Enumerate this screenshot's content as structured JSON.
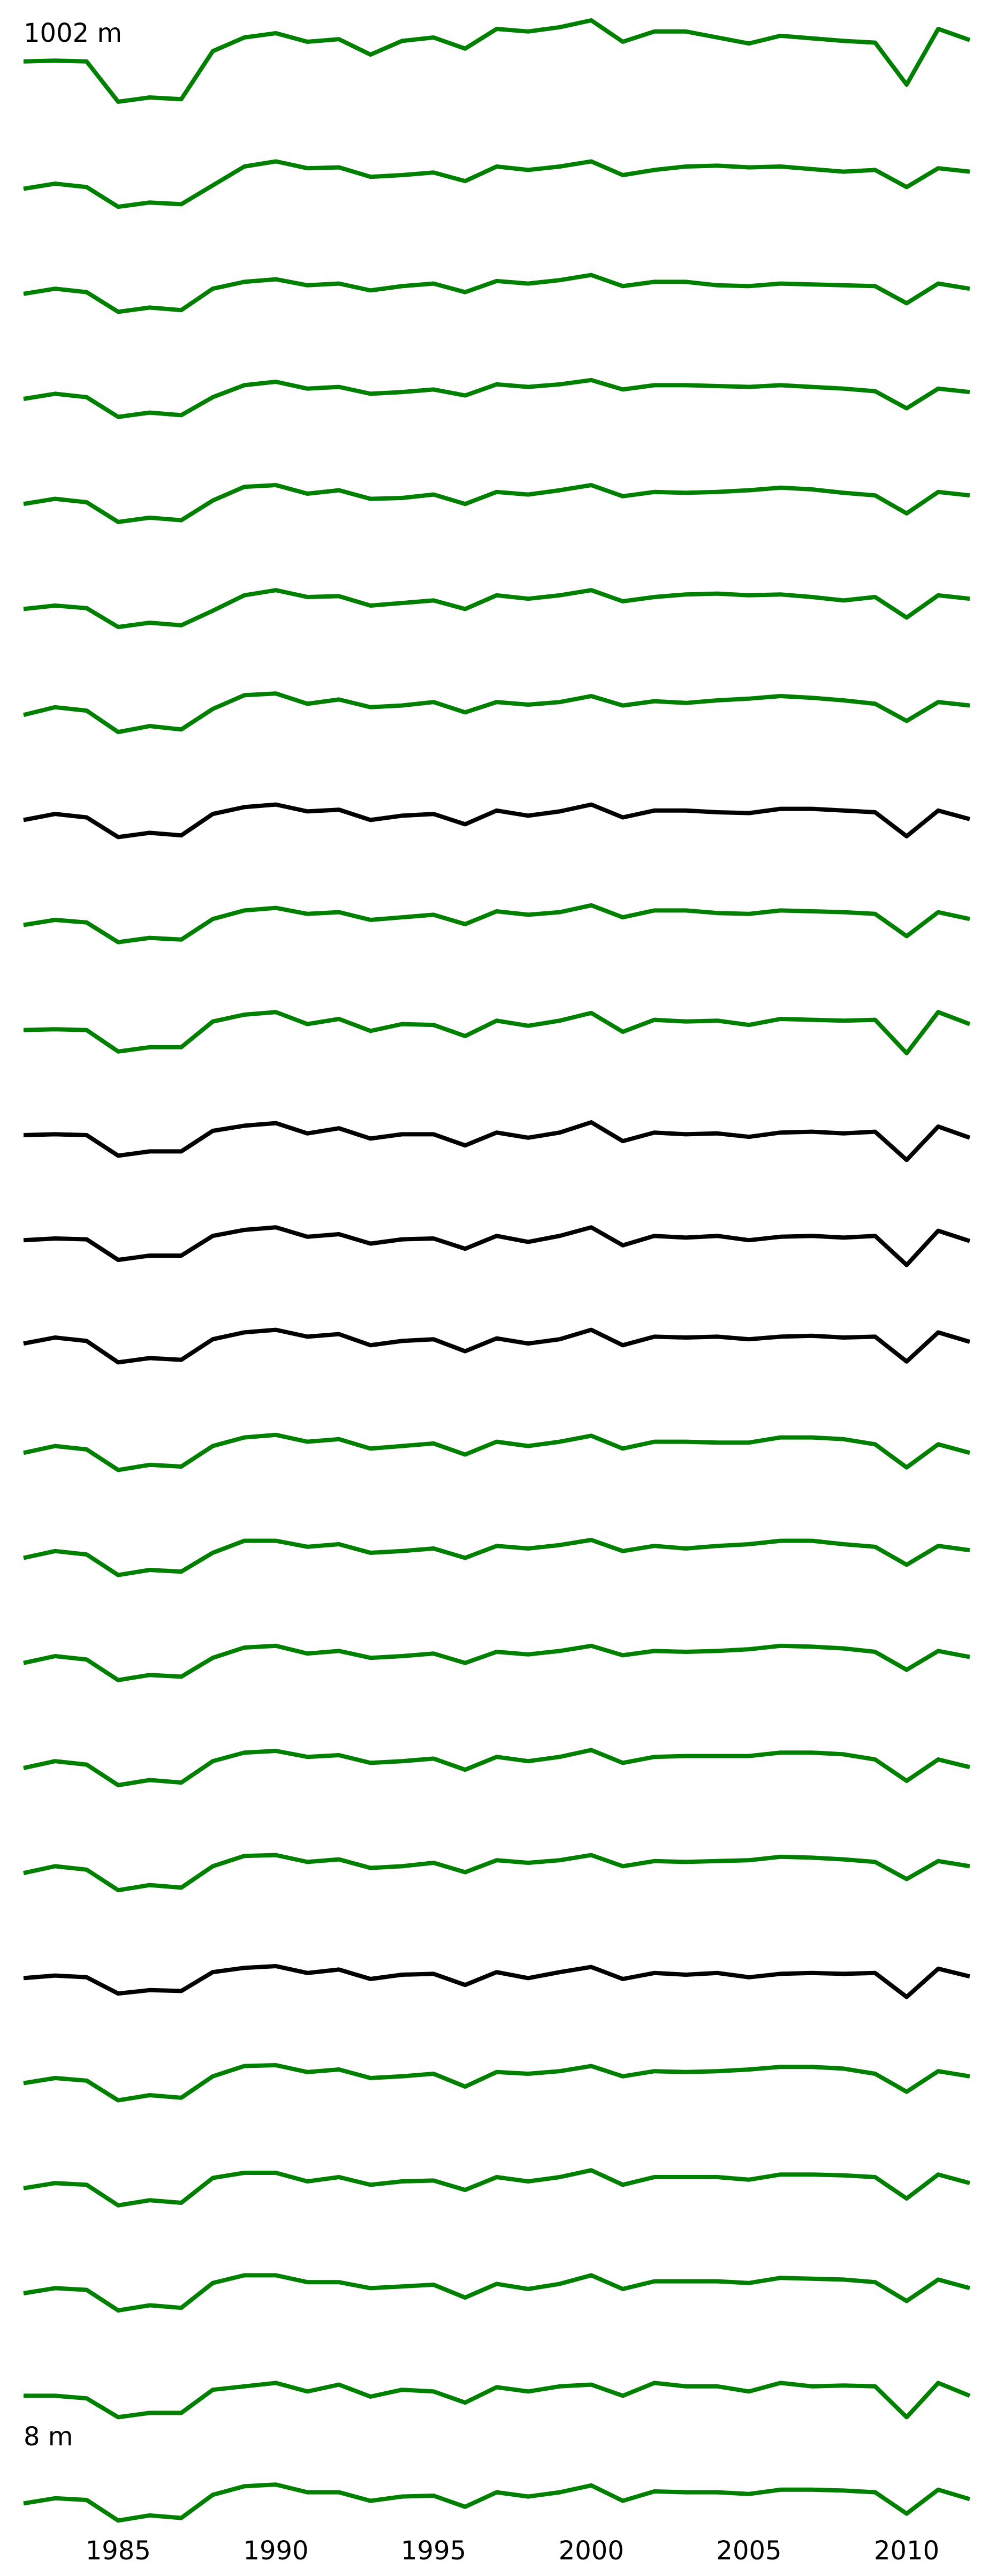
{
  "chart_data": {
    "type": "line",
    "top_label": "1002 m",
    "bottom_label": "8 m",
    "x": [
      1982,
      1983,
      1984,
      1985,
      1986,
      1987,
      1988,
      1989,
      1990,
      1991,
      1992,
      1993,
      1994,
      1995,
      1996,
      1997,
      1998,
      1999,
      2000,
      2001,
      2002,
      2003,
      2004,
      2005,
      2006,
      2007,
      2008,
      2009,
      2010,
      2011,
      2012
    ],
    "x_ticks": [
      1985,
      1990,
      1995,
      2000,
      2005,
      2010
    ],
    "xlim": [
      1982,
      2012
    ],
    "y_axis_visible": false,
    "grid": false,
    "colors": {
      "green": "#008000",
      "black": "#000000"
    },
    "series": [
      {
        "color": "green",
        "values": [
          0.72,
          0.73,
          0.72,
          0.25,
          0.3,
          0.28,
          0.84,
          1.0,
          1.05,
          0.95,
          0.98,
          0.8,
          0.96,
          1.0,
          0.87,
          1.1,
          1.07,
          1.12,
          1.2,
          0.95,
          1.07,
          1.07,
          1.0,
          0.93,
          1.02,
          0.99,
          0.96,
          0.94,
          0.45,
          1.1,
          0.97
        ]
      },
      {
        "color": "green",
        "values": [
          0.46,
          0.52,
          0.48,
          0.25,
          0.3,
          0.28,
          0.5,
          0.72,
          0.78,
          0.7,
          0.71,
          0.6,
          0.62,
          0.65,
          0.55,
          0.72,
          0.68,
          0.72,
          0.78,
          0.62,
          0.68,
          0.72,
          0.73,
          0.71,
          0.72,
          0.69,
          0.66,
          0.68,
          0.48,
          0.7,
          0.66
        ]
      },
      {
        "color": "green",
        "values": [
          0.46,
          0.52,
          0.48,
          0.25,
          0.3,
          0.27,
          0.52,
          0.6,
          0.63,
          0.56,
          0.58,
          0.5,
          0.55,
          0.58,
          0.48,
          0.61,
          0.58,
          0.62,
          0.68,
          0.55,
          0.6,
          0.6,
          0.56,
          0.55,
          0.58,
          0.57,
          0.56,
          0.55,
          0.35,
          0.58,
          0.52
        ]
      },
      {
        "color": "green",
        "values": [
          0.46,
          0.52,
          0.48,
          0.25,
          0.3,
          0.27,
          0.48,
          0.62,
          0.66,
          0.58,
          0.6,
          0.52,
          0.54,
          0.57,
          0.5,
          0.63,
          0.6,
          0.63,
          0.68,
          0.57,
          0.62,
          0.62,
          0.61,
          0.6,
          0.62,
          0.6,
          0.58,
          0.55,
          0.35,
          0.58,
          0.54
        ]
      },
      {
        "color": "green",
        "values": [
          0.46,
          0.52,
          0.48,
          0.25,
          0.3,
          0.27,
          0.5,
          0.66,
          0.68,
          0.58,
          0.62,
          0.52,
          0.53,
          0.57,
          0.46,
          0.6,
          0.57,
          0.62,
          0.68,
          0.55,
          0.6,
          0.59,
          0.6,
          0.62,
          0.65,
          0.63,
          0.59,
          0.56,
          0.35,
          0.6,
          0.56
        ]
      },
      {
        "color": "green",
        "values": [
          0.46,
          0.5,
          0.47,
          0.25,
          0.3,
          0.27,
          0.44,
          0.62,
          0.68,
          0.6,
          0.61,
          0.5,
          0.53,
          0.56,
          0.46,
          0.62,
          0.58,
          0.62,
          0.68,
          0.55,
          0.6,
          0.63,
          0.64,
          0.62,
          0.63,
          0.6,
          0.56,
          0.6,
          0.36,
          0.62,
          0.58
        ]
      },
      {
        "color": "green",
        "values": [
          0.45,
          0.54,
          0.5,
          0.25,
          0.32,
          0.28,
          0.52,
          0.68,
          0.7,
          0.58,
          0.63,
          0.54,
          0.56,
          0.6,
          0.48,
          0.6,
          0.57,
          0.6,
          0.67,
          0.56,
          0.61,
          0.59,
          0.62,
          0.64,
          0.67,
          0.65,
          0.62,
          0.58,
          0.38,
          0.6,
          0.56
        ]
      },
      {
        "color": "black",
        "values": [
          0.45,
          0.52,
          0.48,
          0.25,
          0.3,
          0.27,
          0.52,
          0.6,
          0.63,
          0.55,
          0.57,
          0.45,
          0.5,
          0.52,
          0.4,
          0.56,
          0.5,
          0.55,
          0.63,
          0.48,
          0.56,
          0.56,
          0.54,
          0.53,
          0.58,
          0.58,
          0.56,
          0.54,
          0.26,
          0.56,
          0.46
        ]
      },
      {
        "color": "green",
        "values": [
          0.45,
          0.51,
          0.48,
          0.25,
          0.3,
          0.28,
          0.52,
          0.62,
          0.65,
          0.58,
          0.6,
          0.51,
          0.54,
          0.57,
          0.46,
          0.61,
          0.57,
          0.6,
          0.68,
          0.54,
          0.62,
          0.62,
          0.59,
          0.58,
          0.62,
          0.61,
          0.6,
          0.58,
          0.32,
          0.6,
          0.52
        ]
      },
      {
        "color": "green",
        "values": [
          0.45,
          0.46,
          0.45,
          0.2,
          0.25,
          0.25,
          0.55,
          0.63,
          0.66,
          0.52,
          0.58,
          0.44,
          0.52,
          0.51,
          0.38,
          0.56,
          0.5,
          0.56,
          0.65,
          0.43,
          0.57,
          0.55,
          0.56,
          0.51,
          0.58,
          0.57,
          0.56,
          0.57,
          0.18,
          0.66,
          0.52
        ]
      },
      {
        "color": "black",
        "values": [
          0.45,
          0.46,
          0.45,
          0.21,
          0.26,
          0.26,
          0.5,
          0.56,
          0.59,
          0.47,
          0.53,
          0.41,
          0.46,
          0.46,
          0.33,
          0.48,
          0.42,
          0.48,
          0.6,
          0.38,
          0.48,
          0.46,
          0.47,
          0.43,
          0.48,
          0.49,
          0.47,
          0.49,
          0.16,
          0.55,
          0.42
        ]
      },
      {
        "color": "black",
        "values": [
          0.45,
          0.47,
          0.46,
          0.22,
          0.27,
          0.27,
          0.5,
          0.57,
          0.6,
          0.49,
          0.52,
          0.41,
          0.46,
          0.47,
          0.35,
          0.5,
          0.43,
          0.5,
          0.6,
          0.39,
          0.5,
          0.48,
          0.5,
          0.45,
          0.49,
          0.5,
          0.48,
          0.5,
          0.16,
          0.56,
          0.44
        ]
      },
      {
        "color": "black",
        "values": [
          0.47,
          0.54,
          0.5,
          0.25,
          0.3,
          0.28,
          0.52,
          0.6,
          0.63,
          0.55,
          0.58,
          0.45,
          0.5,
          0.52,
          0.38,
          0.53,
          0.47,
          0.52,
          0.63,
          0.45,
          0.55,
          0.54,
          0.55,
          0.52,
          0.55,
          0.56,
          0.54,
          0.55,
          0.26,
          0.6,
          0.49
        ]
      },
      {
        "color": "green",
        "values": [
          0.42,
          0.5,
          0.46,
          0.22,
          0.28,
          0.26,
          0.5,
          0.6,
          0.63,
          0.55,
          0.58,
          0.47,
          0.5,
          0.53,
          0.4,
          0.55,
          0.5,
          0.55,
          0.62,
          0.47,
          0.55,
          0.55,
          0.54,
          0.54,
          0.6,
          0.6,
          0.58,
          0.52,
          0.25,
          0.52,
          0.42
        ]
      },
      {
        "color": "green",
        "values": [
          0.42,
          0.5,
          0.46,
          0.22,
          0.28,
          0.26,
          0.48,
          0.62,
          0.62,
          0.55,
          0.58,
          0.48,
          0.5,
          0.53,
          0.42,
          0.56,
          0.53,
          0.57,
          0.63,
          0.5,
          0.56,
          0.53,
          0.56,
          0.58,
          0.62,
          0.62,
          0.58,
          0.55,
          0.34,
          0.56,
          0.51
        ]
      },
      {
        "color": "green",
        "values": [
          0.42,
          0.5,
          0.46,
          0.22,
          0.28,
          0.26,
          0.48,
          0.6,
          0.62,
          0.53,
          0.56,
          0.48,
          0.5,
          0.53,
          0.42,
          0.55,
          0.52,
          0.56,
          0.62,
          0.51,
          0.56,
          0.55,
          0.56,
          0.58,
          0.62,
          0.61,
          0.59,
          0.55,
          0.34,
          0.56,
          0.49
        ]
      },
      {
        "color": "green",
        "values": [
          0.42,
          0.5,
          0.46,
          0.22,
          0.28,
          0.25,
          0.5,
          0.6,
          0.62,
          0.55,
          0.57,
          0.48,
          0.5,
          0.53,
          0.4,
          0.55,
          0.5,
          0.55,
          0.63,
          0.48,
          0.55,
          0.56,
          0.56,
          0.56,
          0.6,
          0.6,
          0.58,
          0.52,
          0.27,
          0.52,
          0.43
        ]
      },
      {
        "color": "green",
        "values": [
          0.42,
          0.5,
          0.46,
          0.22,
          0.28,
          0.25,
          0.5,
          0.62,
          0.63,
          0.55,
          0.58,
          0.48,
          0.5,
          0.54,
          0.43,
          0.57,
          0.54,
          0.57,
          0.63,
          0.5,
          0.56,
          0.55,
          0.56,
          0.57,
          0.61,
          0.6,
          0.58,
          0.55,
          0.35,
          0.56,
          0.5
        ]
      },
      {
        "color": "black",
        "values": [
          0.42,
          0.45,
          0.43,
          0.24,
          0.28,
          0.27,
          0.49,
          0.54,
          0.56,
          0.48,
          0.52,
          0.41,
          0.46,
          0.47,
          0.34,
          0.49,
          0.42,
          0.49,
          0.55,
          0.41,
          0.48,
          0.46,
          0.48,
          0.43,
          0.47,
          0.48,
          0.47,
          0.48,
          0.2,
          0.53,
          0.44
        ]
      },
      {
        "color": "green",
        "values": [
          0.42,
          0.48,
          0.45,
          0.22,
          0.28,
          0.25,
          0.5,
          0.62,
          0.63,
          0.55,
          0.58,
          0.48,
          0.5,
          0.53,
          0.38,
          0.55,
          0.53,
          0.56,
          0.62,
          0.5,
          0.56,
          0.55,
          0.56,
          0.58,
          0.61,
          0.61,
          0.59,
          0.53,
          0.32,
          0.56,
          0.5
        ]
      },
      {
        "color": "green",
        "values": [
          0.42,
          0.48,
          0.46,
          0.22,
          0.28,
          0.25,
          0.54,
          0.6,
          0.6,
          0.5,
          0.55,
          0.46,
          0.5,
          0.51,
          0.4,
          0.55,
          0.5,
          0.55,
          0.63,
          0.46,
          0.55,
          0.55,
          0.55,
          0.52,
          0.58,
          0.58,
          0.57,
          0.55,
          0.3,
          0.58,
          0.48
        ]
      },
      {
        "color": "green",
        "values": [
          0.42,
          0.48,
          0.46,
          0.22,
          0.28,
          0.25,
          0.54,
          0.63,
          0.63,
          0.55,
          0.55,
          0.48,
          0.5,
          0.52,
          0.37,
          0.53,
          0.47,
          0.53,
          0.63,
          0.47,
          0.56,
          0.56,
          0.56,
          0.54,
          0.6,
          0.59,
          0.58,
          0.55,
          0.33,
          0.58,
          0.48
        ]
      },
      {
        "color": "green",
        "values": [
          0.45,
          0.45,
          0.42,
          0.2,
          0.25,
          0.25,
          0.52,
          0.56,
          0.6,
          0.5,
          0.58,
          0.44,
          0.52,
          0.5,
          0.37,
          0.55,
          0.5,
          0.56,
          0.58,
          0.45,
          0.6,
          0.56,
          0.56,
          0.5,
          0.6,
          0.56,
          0.57,
          0.56,
          0.2,
          0.6,
          0.45
        ]
      },
      {
        "color": "green",
        "values": [
          0.42,
          0.48,
          0.46,
          0.22,
          0.28,
          0.25,
          0.52,
          0.62,
          0.64,
          0.55,
          0.55,
          0.45,
          0.5,
          0.51,
          0.38,
          0.55,
          0.5,
          0.55,
          0.63,
          0.45,
          0.56,
          0.55,
          0.55,
          0.53,
          0.58,
          0.58,
          0.57,
          0.55,
          0.3,
          0.58,
          0.47
        ]
      }
    ]
  }
}
